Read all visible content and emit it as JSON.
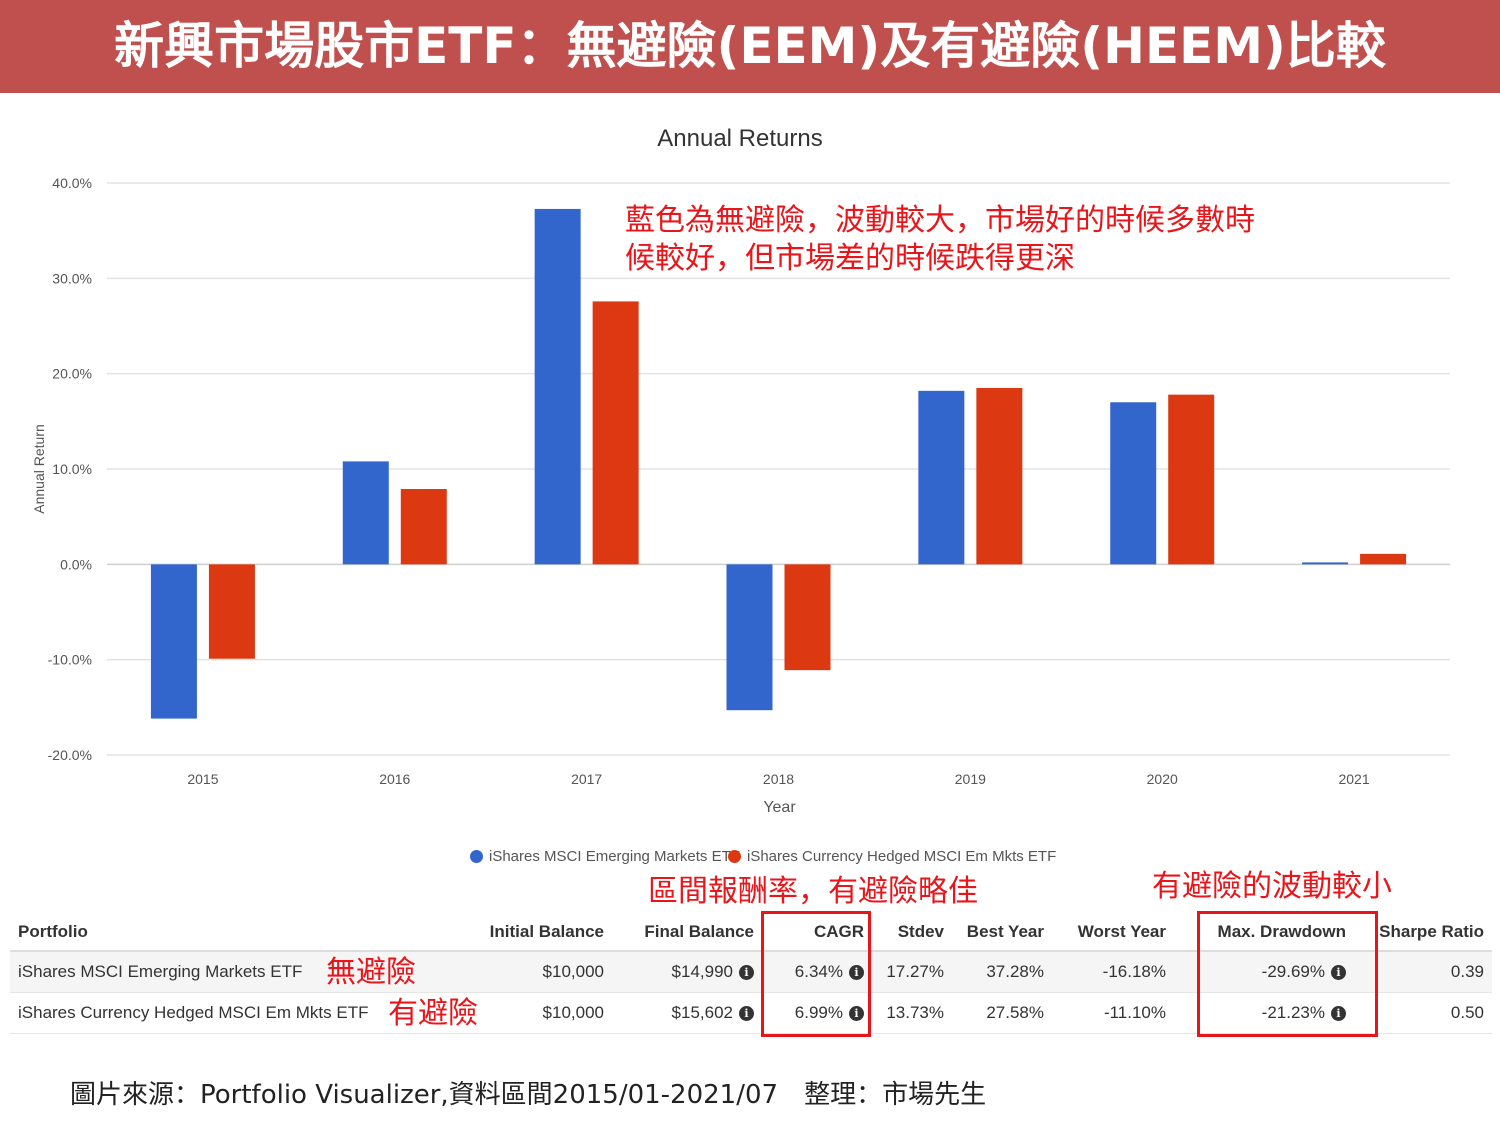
{
  "header": {
    "title": "新興市場股市ETF：無避險(EEM)及有避險(HEEM)比較"
  },
  "chart_data": {
    "type": "bar",
    "title": "Annual Returns",
    "xlabel": "Year",
    "ylabel": "Annual Return",
    "categories": [
      "2015",
      "2016",
      "2017",
      "2018",
      "2019",
      "2020",
      "2021"
    ],
    "series": [
      {
        "name": "iShares MSCI Emerging Markets ETF",
        "color": "#3366cc",
        "values": [
          -16.18,
          10.8,
          37.28,
          -15.3,
          18.2,
          17.0,
          0.2
        ]
      },
      {
        "name": "iShares Currency Hedged MSCI Em Mkts ETF",
        "color": "#dc3912",
        "values": [
          -9.9,
          7.9,
          27.58,
          -11.1,
          18.5,
          17.8,
          1.1
        ]
      }
    ],
    "ylim": [
      -20,
      40
    ],
    "yticks": [
      40,
      30,
      20,
      10,
      0,
      -10,
      -20
    ],
    "ytick_labels": [
      "40.0%",
      "30.0%",
      "20.0%",
      "10.0%",
      "0.0%",
      "-10.0%",
      "-20.0%"
    ],
    "grid": true,
    "legend_position": "bottom"
  },
  "annotations": {
    "blue_note_line1": "藍色為無避險，波動較大，市場好的時候多數時",
    "blue_note_line2": "候較好，但市場差的時候跌得更深",
    "cagr_note": "區間報酬率，有避險略佳",
    "drawdown_note": "有避險的波動較小",
    "unhedged_tag": "無避險",
    "hedged_tag": "有避險"
  },
  "table": {
    "headers": [
      "Portfolio",
      "Initial Balance",
      "Final Balance",
      "CAGR",
      "Stdev",
      "Best Year",
      "Worst Year",
      "Max. Drawdown",
      "Sharpe Ratio"
    ],
    "rows": [
      {
        "portfolio": "iShares MSCI Emerging Markets ETF",
        "initial": "$10,000",
        "final": "$14,990",
        "cagr": "6.34%",
        "stdev": "17.27%",
        "best": "37.28%",
        "worst": "-16.18%",
        "drawdown": "-29.69%",
        "sharpe": "0.39"
      },
      {
        "portfolio": "iShares Currency Hedged MSCI Em Mkts ETF",
        "initial": "$10,000",
        "final": "$15,602",
        "cagr": "6.99%",
        "stdev": "13.73%",
        "best": "27.58%",
        "worst": "-11.10%",
        "drawdown": "-21.23%",
        "sharpe": "0.50"
      }
    ],
    "info_icon": "i"
  },
  "footer": {
    "source": "圖片來源：Portfolio Visualizer,資料區間2015/01-2021/07　整理：市場先生"
  }
}
